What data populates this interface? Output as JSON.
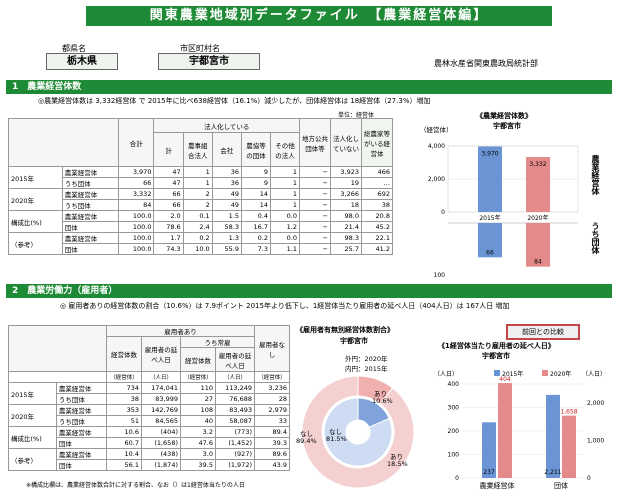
{
  "header": {
    "title": "関東農業地域別データファイル　【農業経営体編】",
    "pref_label": "都県名",
    "pref_value": "栃木県",
    "city_label": "市区町村名",
    "city_value": "宇都宮市",
    "agency": "農林水産省関東農政局統計部"
  },
  "section1": {
    "title": "1　農業経営体数",
    "summary": "◎農業経営体数は 3,332経営体 で 2015年に比べ638経営体（16.1%）減少したが、団体経営体は 18経営体（27.3%）増加",
    "unit": "単位：経営体",
    "headers": {
      "total": "合計",
      "corp": "法人化している",
      "corp_sub": "計",
      "coop": "農事組合法人",
      "company": "会社",
      "assoc": "農協等の団体",
      "other": "その他の法人",
      "local": "地方公共団体等",
      "noncorp": "法人化していない",
      "hlabel": "総農家等がいる経営体"
    },
    "rows": [
      {
        "year": "2015年",
        "kind": "農業経営体",
        "v": [
          "3,970",
          "47",
          "1",
          "36",
          "9",
          "1",
          "−",
          "3,923",
          "466"
        ]
      },
      {
        "year": "",
        "kind": "うち団体",
        "v": [
          "66",
          "47",
          "1",
          "36",
          "9",
          "1",
          "−",
          "19",
          "…"
        ]
      },
      {
        "year": "2020年",
        "kind": "農業経営体",
        "v": [
          "3,332",
          "66",
          "2",
          "49",
          "14",
          "1",
          "−",
          "3,266",
          "692"
        ]
      },
      {
        "year": "",
        "kind": "うち団体",
        "v": [
          "84",
          "66",
          "2",
          "49",
          "14",
          "1",
          "−",
          "18",
          "38"
        ]
      },
      {
        "year": "構成比(%)",
        "kind": "農業経営体",
        "v": [
          "100.0",
          "2.0",
          "0.1",
          "1.5",
          "0.4",
          "0.0",
          "−",
          "98.0",
          "20.8"
        ]
      },
      {
        "year": "",
        "kind": "団体",
        "v": [
          "100.0",
          "78.6",
          "2.4",
          "58.3",
          "16.7",
          "1.2",
          "−",
          "21.4",
          "45.2"
        ]
      },
      {
        "year": "（参考）",
        "kind": "農業経営体",
        "v": [
          "100.0",
          "1.7",
          "0.2",
          "1.3",
          "0.2",
          "0.0",
          "−",
          "98.3",
          "22.1"
        ]
      },
      {
        "year": "栃木県",
        "kind": "団体",
        "v": [
          "100.0",
          "74.3",
          "10.0",
          "55.9",
          "7.3",
          "1.1",
          "−",
          "25.7",
          "41.2"
        ]
      }
    ]
  },
  "chart1": {
    "title": "《農業経営体数》",
    "subtitle": "宇都宮市",
    "unit": "（経営体）",
    "upper_ticks": [
      "4,000",
      "2,000",
      "0"
    ],
    "lower_ticks": [
      "100"
    ],
    "upper_label": "農業経営体",
    "lower_label": "うち団体",
    "chart_data": {
      "type": "bar",
      "categories": [
        "2015年",
        "2020年"
      ],
      "series": [
        {
          "name": "農業経営体",
          "values": [
            3970,
            3332
          ],
          "labels": [
            "3,970",
            "3,332"
          ]
        },
        {
          "name": "うち団体",
          "values": [
            66,
            84
          ],
          "labels": [
            "66",
            "84"
          ]
        }
      ],
      "colors": [
        "#6b94d4",
        "#e48a8a"
      ],
      "upper_ylim": [
        0,
        4000
      ],
      "lower_ylim": [
        0,
        100
      ]
    }
  },
  "section2": {
    "title": "2　農業労働力（雇用者）",
    "summary": "◎ 雇用者ありの経営体数の割合（10.6%）は 7.9ポイント 2015年より低下し、1経営体当たり雇用者の延べ人日（404人日）は 167人日 増加",
    "headers": {
      "employed": "雇用者あり",
      "count": "経営体数",
      "days": "雇用者の延べ人日",
      "perm": "うち常雇",
      "perm_count": "経営体数",
      "perm_days": "雇用者の延べ人日",
      "none": "雇用者なし",
      "unit_row": [
        "（経営体）",
        "（人日）",
        "（経営体）",
        "（人日）",
        "（経営体）"
      ]
    },
    "rows": [
      {
        "year": "2015年",
        "kind": "農業経営体",
        "v": [
          "734",
          "174,041",
          "110",
          "113,249",
          "3,236"
        ]
      },
      {
        "year": "",
        "kind": "うち団体",
        "v": [
          "38",
          "83,999",
          "27",
          "76,688",
          "28"
        ]
      },
      {
        "year": "2020年",
        "kind": "農業経営体",
        "v": [
          "353",
          "142,769",
          "108",
          "83,493",
          "2,979"
        ]
      },
      {
        "year": "",
        "kind": "うち団体",
        "v": [
          "51",
          "84,565",
          "40",
          "58,087",
          "33"
        ]
      },
      {
        "year": "構成比(%)",
        "kind": "農業経営体",
        "v": [
          "10.6",
          "(404)",
          "3.2",
          "(773)",
          "89.4"
        ]
      },
      {
        "year": "",
        "kind": "団体",
        "v": [
          "60.7",
          "(1,658)",
          "47.6",
          "(1,452)",
          "39.3"
        ]
      },
      {
        "year": "（参考）",
        "kind": "農業経営体",
        "v": [
          "10.4",
          "(438)",
          "3.0",
          "(927)",
          "89.6"
        ]
      },
      {
        "year": "栃木県",
        "kind": "団体",
        "v": [
          "56.1",
          "(1,874)",
          "39.5",
          "(1,972)",
          "43.9"
        ]
      }
    ],
    "note": "※構成比欄は、農業経営体数合計に対する割合、なお（）は1経営体当たりの人日"
  },
  "chart2": {
    "title": "《雇用者有無別経営体数割合》",
    "subtitle": "宇都宮市",
    "legend_outer": "外円：2020年",
    "legend_inner": "内円：2015年",
    "label_ari_outer": "あり",
    "label_ari_outer_pct": "10.6%",
    "label_nashi_outer": "なし",
    "label_nashi_outer_pct": "89.4%",
    "label_nashi_inner": "なし",
    "label_nashi_inner_pct": "81.5%",
    "label_ari_inner": "あり",
    "label_ari_inner_pct": "18.5%",
    "chart_data": {
      "type": "pie",
      "series": [
        {
          "name": "2020年",
          "values": [
            10.6,
            89.4
          ],
          "labels": [
            "あり",
            "なし"
          ]
        },
        {
          "name": "2015年",
          "values": [
            18.5,
            81.5
          ],
          "labels": [
            "あり",
            "なし"
          ]
        }
      ]
    }
  },
  "chart3": {
    "button": "前回との比較",
    "title": "《1経営体当たり雇用者の延べ人日》",
    "subtitle": "宇都宮市",
    "unit": "（人日）",
    "ticks": [
      "400",
      "300",
      "200",
      "100",
      "0"
    ],
    "ticks_right": [
      "2,000",
      "1,000",
      "0"
    ],
    "unit_right": "（人日）",
    "legend": [
      "2015年",
      "2020年"
    ],
    "chart_data": {
      "type": "bar",
      "categories": [
        "農業経営体",
        "団体"
      ],
      "series": [
        {
          "name": "2015年",
          "values": [
            237,
            2211
          ],
          "labels": [
            "237",
            "2,211"
          ]
        },
        {
          "name": "2020年",
          "values": [
            404,
            1658
          ],
          "labels": [
            "404",
            "1,658"
          ]
        }
      ],
      "colors": [
        "#6b94d4",
        "#e48a8a"
      ],
      "ylim_left": [
        0,
        400
      ],
      "ylim_right": [
        0,
        2500
      ]
    }
  }
}
